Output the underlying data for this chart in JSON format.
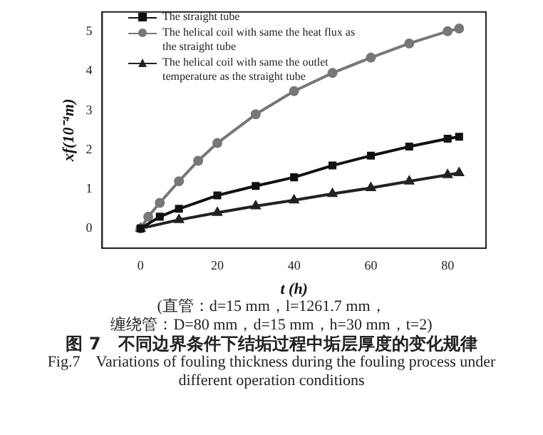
{
  "chart_data": {
    "type": "line",
    "title": "图 7　不同边界条件下结垢过程中垢层厚度的变化规律",
    "subtitle": "Fig.7　Variations of fouling thickness during the fouling process under different operation conditions",
    "xlabel": "t (h)",
    "ylabel": "xf(10⁻⁴m)",
    "annotations": [
      "(直管：d=15 mm，l=1261.7 mm，",
      "缠绕管：D=80 mm，d=15 mm，h=30 mm，t=2)"
    ],
    "xlim": [
      -10,
      90
    ],
    "xticks": [
      0,
      20,
      40,
      60,
      80
    ],
    "ylim": [
      -0.5,
      5.5
    ],
    "yticks": [
      0,
      1,
      2,
      3,
      4,
      5
    ],
    "grid": false,
    "legend": "top left",
    "line_style": "solid",
    "series": [
      {
        "name": "The straight tube",
        "color": "#111111",
        "marker": "square",
        "x": [
          0,
          5,
          10,
          20,
          30,
          40,
          50,
          60,
          70,
          80,
          83
        ],
        "values": [
          0,
          0.3,
          0.5,
          0.84,
          1.08,
          1.3,
          1.6,
          1.85,
          2.08,
          2.28,
          2.33
        ]
      },
      {
        "name": "The helical coil with same the heat flux as the straight tube",
        "color": "#777777",
        "marker": "circle",
        "x": [
          0,
          2,
          5,
          10,
          15,
          20,
          30,
          40,
          50,
          60,
          70,
          80,
          83
        ],
        "values": [
          0,
          0.3,
          0.65,
          1.2,
          1.72,
          2.17,
          2.9,
          3.49,
          3.95,
          4.34,
          4.7,
          5.01,
          5.08
        ]
      },
      {
        "name": "The helical coil with same the outlet temperature as the straight tube",
        "color": "#222222",
        "marker": "triangle",
        "x": [
          0,
          10,
          20,
          30,
          40,
          50,
          60,
          70,
          80,
          83
        ],
        "values": [
          0,
          0.22,
          0.4,
          0.57,
          0.72,
          0.88,
          1.03,
          1.2,
          1.36,
          1.41
        ]
      }
    ]
  }
}
